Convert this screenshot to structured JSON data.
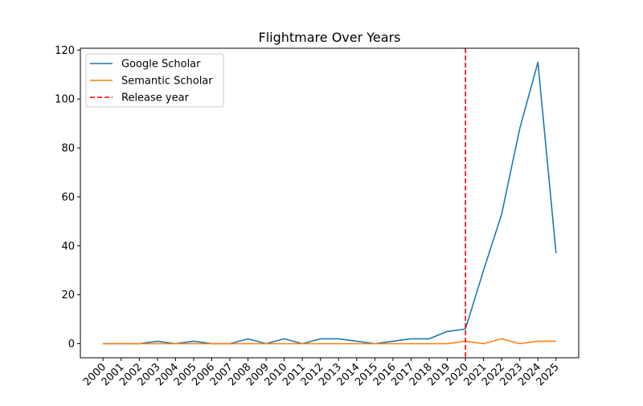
{
  "chart_data": {
    "type": "line",
    "title": "Flightmare Over Years",
    "xlabel": "",
    "ylabel": "",
    "categories": [
      "2000",
      "2001",
      "2002",
      "2003",
      "2004",
      "2005",
      "2006",
      "2007",
      "2008",
      "2009",
      "2010",
      "2011",
      "2012",
      "2013",
      "2014",
      "2015",
      "2016",
      "2017",
      "2018",
      "2019",
      "2020",
      "2021",
      "2022",
      "2023",
      "2024",
      "2025"
    ],
    "y_ticks": [
      0,
      20,
      40,
      60,
      80,
      100,
      120
    ],
    "ylim": [
      -5.75,
      120.75
    ],
    "grid": false,
    "legend_position": "top-left",
    "series": [
      {
        "name": "Google Scholar",
        "color": "#1f77b4",
        "values": [
          0,
          0,
          0,
          1,
          0,
          1,
          0,
          0,
          2,
          0,
          2,
          0,
          2,
          2,
          1,
          0,
          1,
          2,
          2,
          5,
          6,
          30,
          53,
          88,
          115,
          37
        ]
      },
      {
        "name": "Semantic Scholar",
        "color": "#ff7f0e",
        "values": [
          0,
          0,
          0,
          0,
          0,
          0,
          0,
          0,
          0,
          0,
          0,
          0,
          0,
          0,
          0,
          0,
          0,
          0,
          0,
          0,
          1,
          0,
          2,
          0,
          1,
          1
        ]
      }
    ],
    "reference_lines": [
      {
        "name": "Release year",
        "x": "2020",
        "color": "#ff0000",
        "style": "dashed"
      }
    ]
  }
}
